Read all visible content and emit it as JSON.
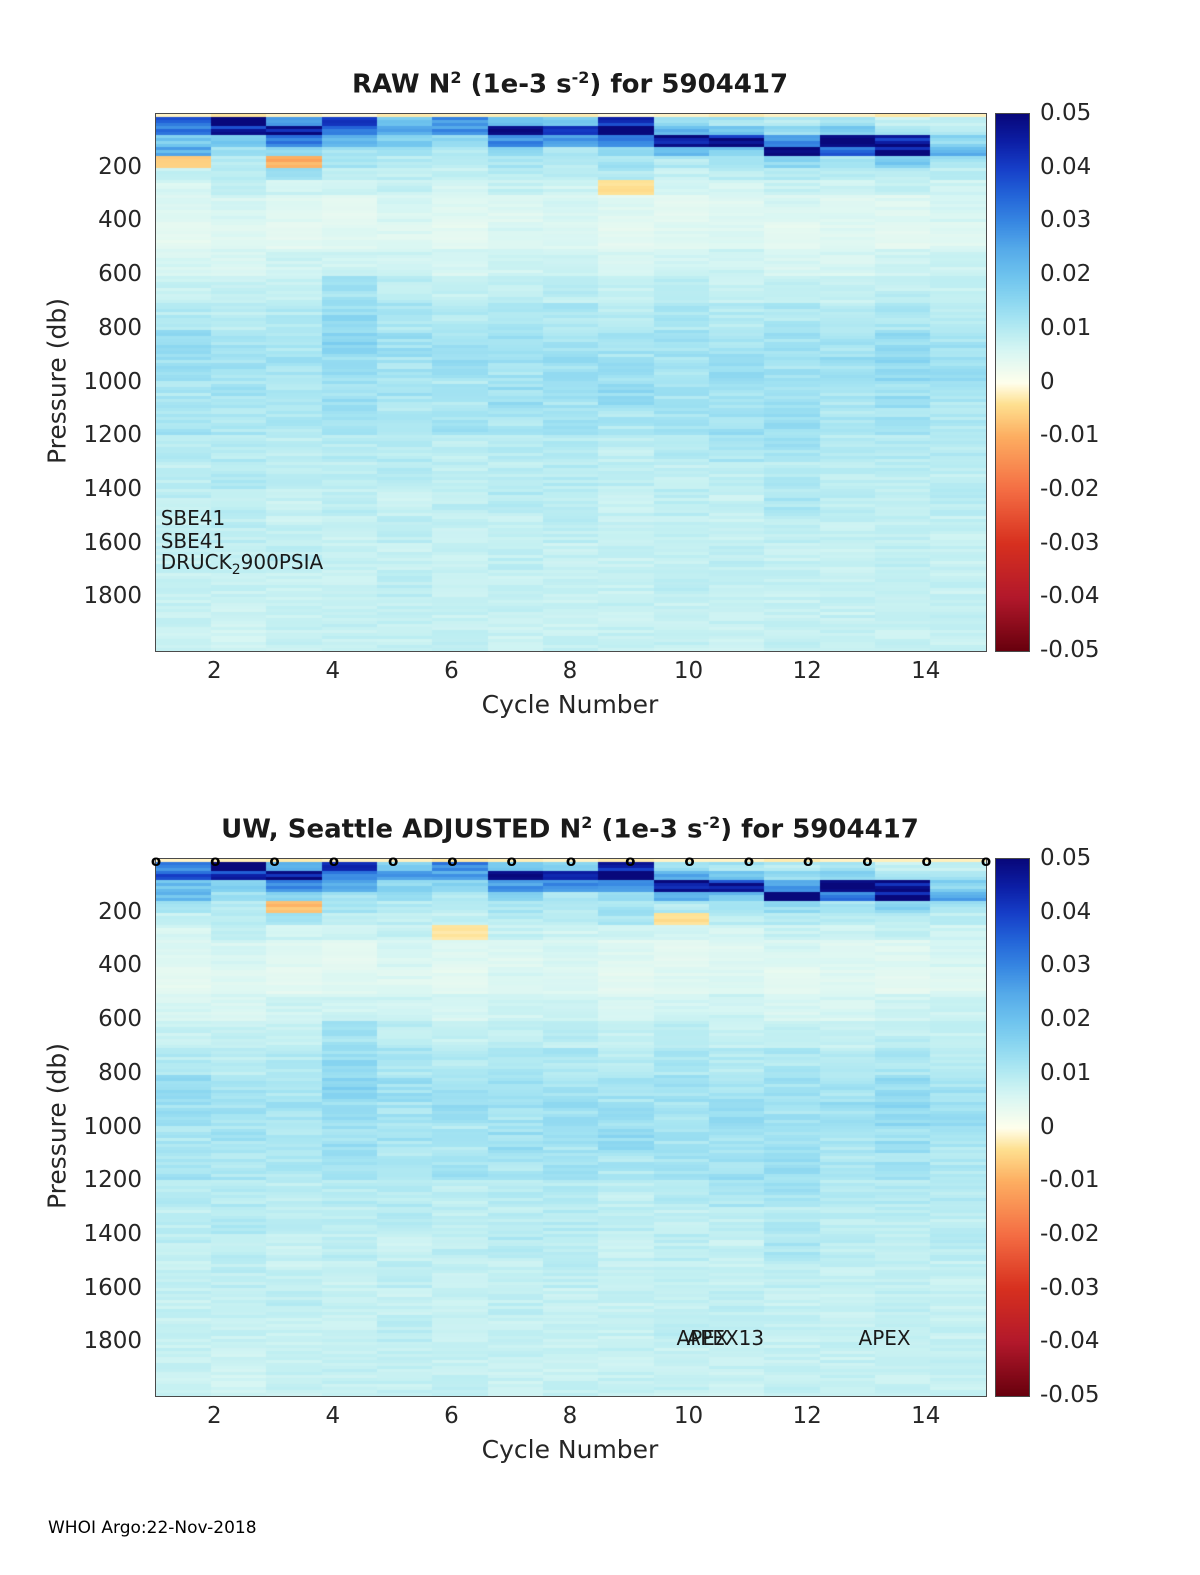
{
  "page": {
    "footer_credit": "WHOI Argo:22-Nov-2018"
  },
  "colormap": {
    "vmin": -0.05,
    "vmax": 0.05,
    "stops": [
      [
        -0.05,
        "#67000D"
      ],
      [
        -0.04,
        "#B2182B"
      ],
      [
        -0.03,
        "#D7301F"
      ],
      [
        -0.02,
        "#F46D43"
      ],
      [
        -0.01,
        "#FDAE61"
      ],
      [
        -0.004,
        "#FEE090"
      ],
      [
        0,
        "#FFFFEC"
      ],
      [
        0.003,
        "#EBFAF0"
      ],
      [
        0.006,
        "#D7F6F3"
      ],
      [
        0.009,
        "#BEEEF2"
      ],
      [
        0.012,
        "#A5E4F2"
      ],
      [
        0.016,
        "#87D4F0"
      ],
      [
        0.02,
        "#6EC3EE"
      ],
      [
        0.025,
        "#55AAE9"
      ],
      [
        0.03,
        "#3787E2"
      ],
      [
        0.035,
        "#2364D8"
      ],
      [
        0.04,
        "#163EC8"
      ],
      [
        0.045,
        "#0C1EA5"
      ],
      [
        0.05,
        "#08087B"
      ]
    ]
  },
  "colorbar": {
    "tick_labels": [
      "0.05",
      "0.04",
      "0.03",
      "0.02",
      "0.01",
      "0",
      "-0.01",
      "-0.02",
      "-0.03",
      "-0.04",
      "-0.05"
    ]
  },
  "chart_data": [
    {
      "type": "heatmap",
      "title_parts": [
        "RAW N",
        "2",
        " (1e-3 s",
        "-2",
        ") for 5904417"
      ],
      "xlabel": "Cycle Number",
      "ylabel": "Pressure (db)",
      "xticks": [
        2,
        4,
        6,
        8,
        10,
        12,
        14
      ],
      "yticks": [
        200,
        400,
        600,
        800,
        1000,
        1200,
        1400,
        1600,
        1800
      ],
      "x_range": [
        1,
        15
      ],
      "pressure_range": [
        0,
        2000
      ],
      "cycles": [
        1,
        2,
        3,
        4,
        5,
        6,
        7,
        8,
        9,
        10,
        11,
        12,
        13,
        14,
        15
      ],
      "pressure_edges": [
        0,
        15,
        40,
        80,
        120,
        160,
        200,
        250,
        300,
        400,
        500,
        600,
        700,
        800,
        900,
        1000,
        1100,
        1200,
        1300,
        1400,
        1500,
        1600,
        1700,
        1800,
        2000
      ],
      "values": [
        [
          -0.002,
          -0.003,
          -0.002,
          -0.001,
          -0.003,
          -0.002,
          -0.002,
          -0.003,
          -0.001,
          -0.002,
          -0.003,
          -0.002,
          -0.002,
          -0.003,
          -0.002
        ],
        [
          0.035,
          0.05,
          0.025,
          0.04,
          0.018,
          0.03,
          0.022,
          0.018,
          0.04,
          0.015,
          0.012,
          0.01,
          0.012,
          0.008,
          0.008
        ],
        [
          0.03,
          0.042,
          0.05,
          0.03,
          0.024,
          0.028,
          0.05,
          0.045,
          0.05,
          0.024,
          0.02,
          0.014,
          0.018,
          0.012,
          0.01
        ],
        [
          0.018,
          0.02,
          0.03,
          0.022,
          0.018,
          0.014,
          0.03,
          0.028,
          0.035,
          0.05,
          0.045,
          0.03,
          0.05,
          0.045,
          0.015
        ],
        [
          0.025,
          0.012,
          0.015,
          0.012,
          0.012,
          0.01,
          0.015,
          0.012,
          0.015,
          0.02,
          0.018,
          0.045,
          0.035,
          0.05,
          0.022
        ],
        [
          -0.006,
          0.01,
          -0.01,
          0.012,
          0.01,
          0.009,
          0.012,
          0.01,
          0.012,
          0.01,
          0.012,
          0.015,
          0.012,
          0.018,
          0.012
        ],
        [
          0.008,
          0.009,
          0.012,
          0.008,
          0.009,
          0.008,
          0.01,
          0.009,
          0.011,
          0.008,
          0.009,
          0.01,
          0.009,
          0.01,
          0.009
        ],
        [
          0.006,
          0.008,
          0.007,
          0.007,
          0.008,
          0.006,
          0.008,
          0.007,
          -0.004,
          0.007,
          0.006,
          0.008,
          0.007,
          0.008,
          0.007
        ],
        [
          0.005,
          0.006,
          0.005,
          0.004,
          0.006,
          0.005,
          0.005,
          0.006,
          0.005,
          0.004,
          0.005,
          0.006,
          0.005,
          0.005,
          0.006
        ],
        [
          0.004,
          0.005,
          0.004,
          0.005,
          0.005,
          0.004,
          0.006,
          0.005,
          0.004,
          0.005,
          0.005,
          0.004,
          0.005,
          0.004,
          0.005
        ],
        [
          0.006,
          0.006,
          0.007,
          0.007,
          0.007,
          0.006,
          0.007,
          0.007,
          0.006,
          0.007,
          0.007,
          0.006,
          0.006,
          0.007,
          0.007
        ],
        [
          0.008,
          0.008,
          0.008,
          0.012,
          0.009,
          0.008,
          0.009,
          0.009,
          0.008,
          0.009,
          0.008,
          0.009,
          0.008,
          0.009,
          0.008
        ],
        [
          0.01,
          0.009,
          0.01,
          0.014,
          0.011,
          0.01,
          0.011,
          0.011,
          0.01,
          0.011,
          0.01,
          0.011,
          0.01,
          0.011,
          0.01
        ],
        [
          0.015,
          0.012,
          0.011,
          0.016,
          0.013,
          0.012,
          0.014,
          0.012,
          0.012,
          0.012,
          0.012,
          0.013,
          0.012,
          0.014,
          0.012
        ],
        [
          0.013,
          0.012,
          0.012,
          0.013,
          0.012,
          0.013,
          0.012,
          0.013,
          0.013,
          0.012,
          0.014,
          0.012,
          0.013,
          0.015,
          0.013
        ],
        [
          0.011,
          0.012,
          0.011,
          0.013,
          0.012,
          0.011,
          0.013,
          0.012,
          0.014,
          0.012,
          0.012,
          0.013,
          0.011,
          0.013,
          0.011
        ],
        [
          0.012,
          0.011,
          0.011,
          0.012,
          0.011,
          0.012,
          0.011,
          0.012,
          0.011,
          0.012,
          0.013,
          0.014,
          0.011,
          0.012,
          0.011
        ],
        [
          0.01,
          0.01,
          0.009,
          0.01,
          0.01,
          0.009,
          0.01,
          0.01,
          0.009,
          0.01,
          0.011,
          0.012,
          0.01,
          0.01,
          0.01
        ],
        [
          0.009,
          0.01,
          0.009,
          0.009,
          0.01,
          0.009,
          0.009,
          0.01,
          0.009,
          0.009,
          0.009,
          0.01,
          0.009,
          0.009,
          0.009
        ],
        [
          0.009,
          0.009,
          0.008,
          0.009,
          0.008,
          0.009,
          0.01,
          0.009,
          0.008,
          0.009,
          0.008,
          0.011,
          0.009,
          0.008,
          0.009
        ],
        [
          0.008,
          0.009,
          0.008,
          0.008,
          0.009,
          0.008,
          0.008,
          0.009,
          0.008,
          0.008,
          0.008,
          0.009,
          0.008,
          0.008,
          0.008
        ],
        [
          0.008,
          0.008,
          0.009,
          0.008,
          0.008,
          0.008,
          0.009,
          0.008,
          0.008,
          0.008,
          0.009,
          0.008,
          0.008,
          0.009,
          0.008
        ],
        [
          0.008,
          0.008,
          0.008,
          0.008,
          0.009,
          0.008,
          0.008,
          0.008,
          0.008,
          0.009,
          0.008,
          0.008,
          0.008,
          0.008,
          0.008
        ],
        [
          0.008,
          0.007,
          0.008,
          0.008,
          0.008,
          0.008,
          0.008,
          0.008,
          0.008,
          0.008,
          0.008,
          0.008,
          0.008,
          0.008,
          0.008
        ]
      ],
      "annotations": [
        {
          "text": "SBE41",
          "cycle": 1.08,
          "pressure": 1505
        },
        {
          "text": "SBE41",
          "cycle": 1.08,
          "pressure": 1590
        },
        {
          "parts": [
            "DRUCK",
            "2",
            "900PSIA"
          ],
          "cycle": 1.08,
          "pressure": 1675
        }
      ]
    },
    {
      "type": "heatmap",
      "title_parts": [
        "UW, Seattle  ADJUSTED N",
        "2",
        " (1e-3 s",
        "-2",
        ") for 5904417"
      ],
      "xlabel": "Cycle Number",
      "ylabel": "Pressure (db)",
      "xticks": [
        2,
        4,
        6,
        8,
        10,
        12,
        14
      ],
      "yticks": [
        200,
        400,
        600,
        800,
        1000,
        1200,
        1400,
        1600,
        1800
      ],
      "x_range": [
        1,
        15
      ],
      "pressure_range": [
        0,
        2000
      ],
      "cycles": [
        1,
        2,
        3,
        4,
        5,
        6,
        7,
        8,
        9,
        10,
        11,
        12,
        13,
        14,
        15
      ],
      "pressure_edges": [
        0,
        15,
        40,
        80,
        120,
        160,
        200,
        250,
        300,
        400,
        500,
        600,
        700,
        800,
        900,
        1000,
        1100,
        1200,
        1300,
        1400,
        1500,
        1600,
        1700,
        1800,
        2000
      ],
      "values": [
        [
          -0.002,
          -0.002,
          -0.003,
          -0.002,
          -0.002,
          -0.003,
          -0.002,
          -0.002,
          -0.003,
          -0.002,
          -0.002,
          -0.003,
          -0.002,
          -0.002,
          -0.002
        ],
        [
          0.03,
          0.05,
          0.022,
          0.042,
          0.016,
          0.032,
          0.02,
          0.016,
          0.042,
          0.014,
          0.012,
          0.01,
          0.012,
          0.008,
          0.008
        ],
        [
          0.035,
          0.04,
          0.05,
          0.028,
          0.026,
          0.026,
          0.05,
          0.048,
          0.05,
          0.026,
          0.02,
          0.014,
          0.016,
          0.012,
          0.012
        ],
        [
          0.02,
          0.018,
          0.028,
          0.024,
          0.016,
          0.015,
          0.028,
          0.03,
          0.032,
          0.05,
          0.042,
          0.028,
          0.05,
          0.048,
          0.016
        ],
        [
          0.022,
          0.012,
          0.016,
          0.012,
          0.013,
          0.01,
          0.016,
          0.012,
          0.014,
          0.022,
          0.02,
          0.048,
          0.032,
          0.05,
          0.024
        ],
        [
          0.012,
          0.01,
          -0.008,
          0.012,
          0.01,
          0.009,
          0.012,
          0.01,
          0.012,
          0.01,
          0.012,
          0.014,
          0.012,
          0.016,
          0.012
        ],
        [
          0.008,
          0.009,
          0.011,
          0.008,
          0.009,
          0.008,
          0.01,
          0.009,
          0.012,
          -0.004,
          0.009,
          0.01,
          0.009,
          0.01,
          0.009
        ],
        [
          0.006,
          0.008,
          0.007,
          0.007,
          0.008,
          -0.003,
          0.008,
          0.007,
          0.007,
          0.007,
          0.006,
          0.008,
          0.007,
          0.008,
          0.007
        ],
        [
          0.005,
          0.006,
          0.005,
          0.004,
          0.006,
          0.005,
          0.005,
          0.006,
          0.005,
          0.004,
          0.005,
          0.006,
          0.005,
          0.005,
          0.006
        ],
        [
          0.004,
          0.005,
          0.004,
          0.005,
          0.005,
          0.004,
          0.006,
          0.005,
          0.004,
          0.005,
          0.005,
          0.004,
          0.005,
          0.004,
          0.005
        ],
        [
          0.006,
          0.006,
          0.007,
          0.007,
          0.007,
          0.006,
          0.007,
          0.007,
          0.006,
          0.007,
          0.007,
          0.006,
          0.006,
          0.007,
          0.007
        ],
        [
          0.008,
          0.008,
          0.008,
          0.012,
          0.009,
          0.008,
          0.009,
          0.009,
          0.008,
          0.009,
          0.008,
          0.009,
          0.008,
          0.009,
          0.008
        ],
        [
          0.01,
          0.009,
          0.01,
          0.014,
          0.011,
          0.01,
          0.011,
          0.011,
          0.01,
          0.011,
          0.01,
          0.011,
          0.01,
          0.011,
          0.01
        ],
        [
          0.015,
          0.012,
          0.011,
          0.016,
          0.013,
          0.012,
          0.014,
          0.012,
          0.012,
          0.012,
          0.012,
          0.013,
          0.012,
          0.014,
          0.012
        ],
        [
          0.013,
          0.012,
          0.012,
          0.013,
          0.012,
          0.013,
          0.012,
          0.013,
          0.013,
          0.012,
          0.014,
          0.012,
          0.013,
          0.015,
          0.013
        ],
        [
          0.011,
          0.012,
          0.011,
          0.013,
          0.012,
          0.011,
          0.013,
          0.012,
          0.014,
          0.012,
          0.012,
          0.013,
          0.011,
          0.013,
          0.011
        ],
        [
          0.012,
          0.011,
          0.011,
          0.012,
          0.011,
          0.012,
          0.011,
          0.012,
          0.011,
          0.012,
          0.013,
          0.014,
          0.011,
          0.012,
          0.011
        ],
        [
          0.01,
          0.01,
          0.009,
          0.01,
          0.01,
          0.009,
          0.01,
          0.01,
          0.009,
          0.01,
          0.011,
          0.012,
          0.01,
          0.01,
          0.01
        ],
        [
          0.009,
          0.01,
          0.009,
          0.009,
          0.01,
          0.009,
          0.009,
          0.01,
          0.009,
          0.009,
          0.009,
          0.01,
          0.009,
          0.009,
          0.009
        ],
        [
          0.009,
          0.009,
          0.008,
          0.009,
          0.008,
          0.009,
          0.01,
          0.009,
          0.008,
          0.009,
          0.008,
          0.011,
          0.009,
          0.008,
          0.009
        ],
        [
          0.008,
          0.009,
          0.008,
          0.008,
          0.009,
          0.008,
          0.008,
          0.009,
          0.008,
          0.008,
          0.008,
          0.009,
          0.008,
          0.008,
          0.008
        ],
        [
          0.008,
          0.008,
          0.009,
          0.008,
          0.008,
          0.008,
          0.009,
          0.008,
          0.008,
          0.008,
          0.009,
          0.008,
          0.008,
          0.009,
          0.008
        ],
        [
          0.008,
          0.008,
          0.008,
          0.008,
          0.009,
          0.008,
          0.008,
          0.008,
          0.008,
          0.009,
          0.008,
          0.008,
          0.008,
          0.008,
          0.008
        ],
        [
          0.008,
          0.007,
          0.008,
          0.008,
          0.008,
          0.008,
          0.008,
          0.008,
          0.008,
          0.008,
          0.008,
          0.008,
          0.008,
          0.008,
          0.008
        ]
      ],
      "annotations": [
        {
          "text": "APEX13",
          "cycle": 9.95,
          "pressure": 1785
        },
        {
          "text": "APEX",
          "cycle": 9.78,
          "pressure": 1785
        },
        {
          "text": "APEX",
          "cycle": 12.85,
          "pressure": 1785
        }
      ],
      "markers": {
        "symbol": "o",
        "pressure": 6,
        "cycles": [
          1,
          2,
          3,
          4,
          5,
          6,
          7,
          8,
          9,
          10,
          11,
          12,
          13,
          14,
          15
        ]
      }
    }
  ]
}
